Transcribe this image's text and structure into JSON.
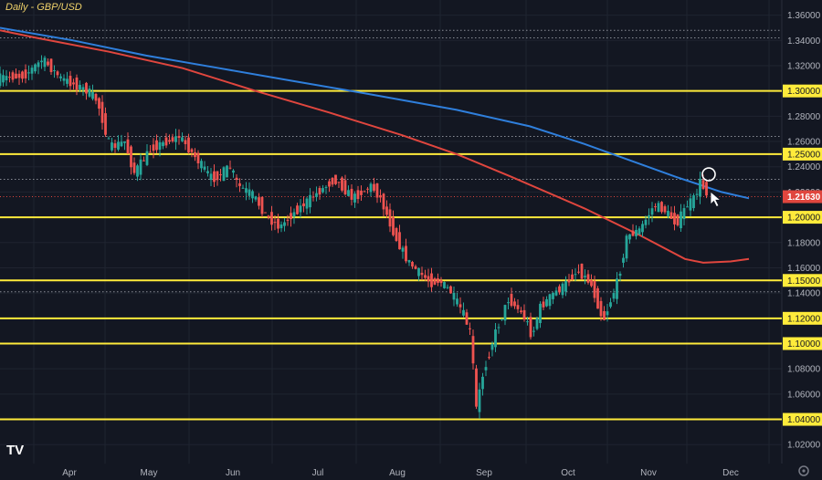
{
  "chart_data": {
    "type": "candlestick",
    "title": "Daily - GBP/USD",
    "x_ticks": [
      "Apr",
      "May",
      "Jun",
      "Jul",
      "Aug",
      "Sep",
      "Oct",
      "Nov",
      "Dec"
    ],
    "y_ticks": [
      "1.36000",
      "1.34000",
      "1.32000",
      "1.28000",
      "1.26000",
      "1.24000",
      "1.22000",
      "1.20000",
      "1.18000",
      "1.16000",
      "1.14000",
      "1.12000",
      "1.10000",
      "1.08000",
      "1.06000",
      "1.04000",
      "1.02000"
    ],
    "ylim": [
      1.005,
      1.372
    ],
    "current_price": {
      "value": 1.2163,
      "label": "1.21630"
    },
    "horizontal_levels": [
      {
        "value": 1.3,
        "label": "1.30000"
      },
      {
        "value": 1.25,
        "label": "1.25000"
      },
      {
        "value": 1.2,
        "label": "1.20000"
      },
      {
        "value": 1.15,
        "label": "1.15000"
      },
      {
        "value": 1.12,
        "label": "1.12000"
      },
      {
        "value": 1.1,
        "label": "1.10000"
      },
      {
        "value": 1.04,
        "label": "1.04000"
      }
    ],
    "dotted_levels": [
      1.348,
      1.342,
      1.264,
      1.23,
      1.141
    ],
    "series": [
      {
        "name": "moving-average-blue",
        "color": "#2f7fdc",
        "values": [
          [
            1.35,
            0
          ],
          [
            1.34,
            40
          ],
          [
            1.328,
            80
          ],
          [
            1.318,
            120
          ],
          [
            1.308,
            160
          ],
          [
            1.298,
            200
          ],
          [
            1.285,
            250
          ],
          [
            1.272,
            290
          ],
          [
            1.258,
            320
          ],
          [
            1.245,
            345
          ],
          [
            1.232,
            370
          ],
          [
            1.22,
            395
          ],
          [
            1.215,
            410
          ]
        ]
      },
      {
        "name": "moving-average-red",
        "color": "#e0463e",
        "values": [
          [
            1.348,
            0
          ],
          [
            1.342,
            20
          ],
          [
            1.331,
            60
          ],
          [
            1.318,
            100
          ],
          [
            1.3,
            140
          ],
          [
            1.283,
            180
          ],
          [
            1.265,
            220
          ],
          [
            1.25,
            250
          ],
          [
            1.232,
            280
          ],
          [
            1.207,
            320
          ],
          [
            1.186,
            350
          ],
          [
            1.167,
            375
          ],
          [
            1.164,
            385
          ],
          [
            1.165,
            400
          ],
          [
            1.167,
            410
          ]
        ]
      }
    ],
    "price_path": [
      [
        0,
        1.31
      ],
      [
        15,
        1.312
      ],
      [
        25,
        1.325
      ],
      [
        35,
        1.31
      ],
      [
        50,
        1.3
      ],
      [
        55,
        1.292
      ],
      [
        62,
        1.255
      ],
      [
        70,
        1.26
      ],
      [
        75,
        1.235
      ],
      [
        85,
        1.255
      ],
      [
        100,
        1.264
      ],
      [
        110,
        1.245
      ],
      [
        118,
        1.23
      ],
      [
        128,
        1.24
      ],
      [
        132,
        1.225
      ],
      [
        140,
        1.218
      ],
      [
        148,
        1.2
      ],
      [
        155,
        1.192
      ],
      [
        160,
        1.2
      ],
      [
        170,
        1.213
      ],
      [
        185,
        1.23
      ],
      [
        195,
        1.215
      ],
      [
        205,
        1.225
      ],
      [
        210,
        1.215
      ],
      [
        218,
        1.185
      ],
      [
        225,
        1.165
      ],
      [
        232,
        1.155
      ],
      [
        238,
        1.148
      ],
      [
        242,
        1.15
      ],
      [
        248,
        1.142
      ],
      [
        255,
        1.125
      ],
      [
        260,
        1.105
      ],
      [
        262,
        1.045
      ],
      [
        266,
        1.075
      ],
      [
        272,
        1.105
      ],
      [
        280,
        1.135
      ],
      [
        285,
        1.128
      ],
      [
        290,
        1.118
      ],
      [
        293,
        1.105
      ],
      [
        297,
        1.128
      ],
      [
        305,
        1.14
      ],
      [
        310,
        1.145
      ],
      [
        318,
        1.158
      ],
      [
        325,
        1.148
      ],
      [
        332,
        1.118
      ],
      [
        340,
        1.15
      ],
      [
        345,
        1.185
      ],
      [
        352,
        1.19
      ],
      [
        360,
        1.21
      ],
      [
        366,
        1.205
      ],
      [
        372,
        1.195
      ],
      [
        378,
        1.21
      ],
      [
        382,
        1.215
      ],
      [
        385,
        1.228
      ],
      [
        388,
        1.22
      ]
    ]
  }
}
